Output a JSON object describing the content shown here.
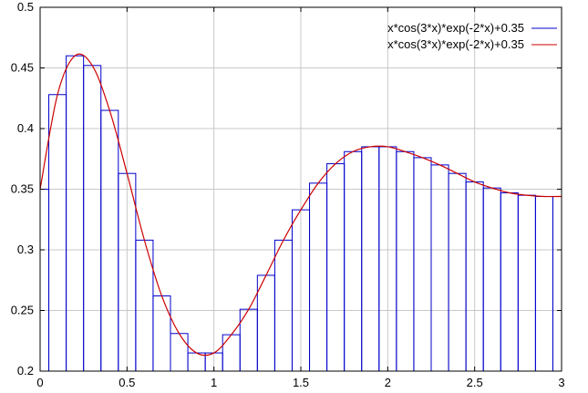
{
  "chart_data": {
    "type": "bar",
    "title": "",
    "xlabel": "",
    "ylabel": "",
    "xlim": [
      0,
      3
    ],
    "ylim": [
      0.2,
      0.5
    ],
    "grid": true,
    "legend_position": "top-right",
    "x_ticks": [
      "0",
      "0.5",
      "1",
      "1.5",
      "2",
      "2.5",
      "3"
    ],
    "y_ticks": [
      "0.2",
      "0.25",
      "0.3",
      "0.35",
      "0.4",
      "0.45",
      "0.5"
    ],
    "x_tick_values": [
      0,
      0.5,
      1,
      1.5,
      2,
      2.5,
      3
    ],
    "y_tick_values": [
      0.2,
      0.25,
      0.3,
      0.35,
      0.4,
      0.45,
      0.5
    ],
    "series": [
      {
        "name": "x*cos(3*x)*exp(-2*x)+0.35",
        "style": "histogram steps",
        "color": "#0000cc",
        "bin_width": 0.1,
        "x": [
          0.0,
          0.1,
          0.2,
          0.3,
          0.4,
          0.5,
          0.6,
          0.7,
          0.8,
          0.9,
          1.0,
          1.1,
          1.2,
          1.3,
          1.4,
          1.5,
          1.6,
          1.7,
          1.8,
          1.9,
          2.0,
          2.1,
          2.2,
          2.3,
          2.4,
          2.5,
          2.6,
          2.7,
          2.8,
          2.9,
          3.0
        ],
        "values": [
          0.35,
          0.428,
          0.46,
          0.452,
          0.415,
          0.363,
          0.308,
          0.262,
          0.231,
          0.215,
          0.215,
          0.23,
          0.251,
          0.279,
          0.308,
          0.333,
          0.355,
          0.371,
          0.381,
          0.385,
          0.385,
          0.381,
          0.376,
          0.37,
          0.363,
          0.356,
          0.351,
          0.347,
          0.345,
          0.344,
          0.344
        ]
      },
      {
        "name": "x*cos(3*x)*exp(-2*x)+0.35",
        "style": "line",
        "color": "#cc0000",
        "x": [
          0.0,
          0.1,
          0.2,
          0.3,
          0.4,
          0.5,
          0.6,
          0.7,
          0.8,
          0.9,
          1.0,
          1.1,
          1.2,
          1.3,
          1.4,
          1.5,
          1.6,
          1.7,
          1.8,
          1.9,
          2.0,
          2.1,
          2.2,
          2.3,
          2.4,
          2.5,
          2.6,
          2.7,
          2.8,
          2.9,
          3.0
        ],
        "values": [
          0.35,
          0.428,
          0.46,
          0.452,
          0.415,
          0.363,
          0.308,
          0.262,
          0.231,
          0.215,
          0.215,
          0.23,
          0.251,
          0.279,
          0.308,
          0.333,
          0.355,
          0.371,
          0.381,
          0.385,
          0.385,
          0.381,
          0.376,
          0.37,
          0.363,
          0.356,
          0.351,
          0.347,
          0.345,
          0.344,
          0.344
        ]
      }
    ]
  }
}
